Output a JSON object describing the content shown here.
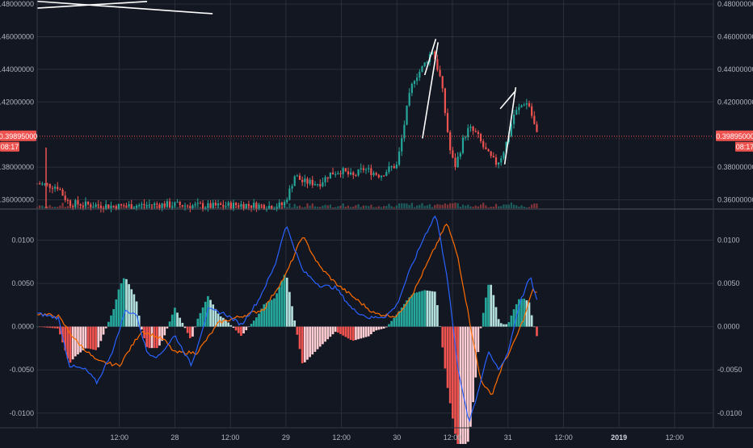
{
  "theme": {
    "background": "#131722",
    "grid": "#2a2e39",
    "axis_text": "#b2b5be",
    "up": "#26a69a",
    "down": "#ef5350",
    "macd_line": "#2962ff",
    "signal_line": "#ff6d00",
    "drawing": "#ffffff"
  },
  "chart_data": [
    {
      "type": "candlestick",
      "title": "",
      "y_ticks": [
        "0.48000000",
        "0.46000000",
        "0.44000000",
        "0.42000000",
        "0.38000000",
        "0.36000000"
      ],
      "y_tick_values": [
        0.48,
        0.46,
        0.44,
        0.42,
        0.38,
        0.36
      ],
      "ylim": [
        0.3548,
        0.4825
      ],
      "price_label": "0.39895000",
      "countdown_label": "08:17",
      "current_price": 0.39895,
      "time_ticks": [
        {
          "label": "12:00",
          "t": 0.5
        },
        {
          "label": "28",
          "t": 1
        },
        {
          "label": "12:00",
          "t": 1.5
        },
        {
          "label": "29",
          "t": 2
        },
        {
          "label": "12:00",
          "t": 2.5
        },
        {
          "label": "30",
          "t": 3
        },
        {
          "label": "12:00",
          "t": 3.5
        },
        {
          "label": "31",
          "t": 4
        },
        {
          "label": "12:00",
          "t": 4.5
        },
        {
          "label": "2019",
          "t": 5,
          "bold": true
        },
        {
          "label": "12:00",
          "t": 5.5
        }
      ],
      "time_range": [
        -0.24,
        5.85
      ],
      "keypoints": [
        [
          -0.24,
          0.37
        ],
        [
          -0.15,
          0.369
        ],
        [
          -0.05,
          0.368
        ],
        [
          0.0,
          0.362
        ],
        [
          0.05,
          0.358
        ],
        [
          0.2,
          0.357
        ],
        [
          0.5,
          0.356
        ],
        [
          0.8,
          0.357
        ],
        [
          1.0,
          0.357
        ],
        [
          1.3,
          0.356
        ],
        [
          1.6,
          0.357
        ],
        [
          1.9,
          0.356
        ],
        [
          1.98,
          0.357
        ],
        [
          2.03,
          0.365
        ],
        [
          2.08,
          0.375
        ],
        [
          2.15,
          0.371
        ],
        [
          2.3,
          0.37
        ],
        [
          2.4,
          0.376
        ],
        [
          2.5,
          0.378
        ],
        [
          2.6,
          0.374
        ],
        [
          2.7,
          0.379
        ],
        [
          2.85,
          0.375
        ],
        [
          2.95,
          0.38
        ],
        [
          3.0,
          0.381
        ],
        [
          3.05,
          0.4
        ],
        [
          3.1,
          0.42
        ],
        [
          3.15,
          0.434
        ],
        [
          3.22,
          0.44
        ],
        [
          3.28,
          0.447
        ],
        [
          3.32,
          0.452
        ],
        [
          3.36,
          0.442
        ],
        [
          3.4,
          0.432
        ],
        [
          3.44,
          0.41
        ],
        [
          3.48,
          0.39
        ],
        [
          3.52,
          0.38
        ],
        [
          3.56,
          0.388
        ],
        [
          3.6,
          0.398
        ],
        [
          3.65,
          0.404
        ],
        [
          3.72,
          0.4
        ],
        [
          3.78,
          0.392
        ],
        [
          3.84,
          0.386
        ],
        [
          3.9,
          0.382
        ],
        [
          3.95,
          0.388
        ],
        [
          4.0,
          0.398
        ],
        [
          4.05,
          0.412
        ],
        [
          4.1,
          0.416
        ],
        [
          4.15,
          0.42
        ],
        [
          4.19,
          0.418
        ],
        [
          4.22,
          0.41
        ],
        [
          4.26,
          0.4
        ]
      ],
      "volume_spike": {
        "t": -0.16,
        "high": 0.392
      },
      "drawings": [
        [
          [
            -0.24,
            0.4775
          ],
          [
            0.75,
            0.4816
          ]
        ],
        [
          [
            -0.24,
            0.4817
          ],
          [
            1.34,
            0.4741
          ]
        ],
        [
          [
            3.25,
            0.4365
          ],
          [
            3.35,
            0.4586
          ]
        ],
        [
          [
            3.23,
            0.3977
          ],
          [
            3.37,
            0.4566
          ]
        ],
        [
          [
            3.93,
            0.4158
          ],
          [
            4.07,
            0.427
          ]
        ],
        [
          [
            3.97,
            0.3817
          ],
          [
            4.07,
            0.429
          ]
        ]
      ]
    },
    {
      "type": "macd",
      "y_ticks": [
        "0.0100",
        "0.0050",
        "0.0000",
        "-0.0050",
        "-0.0100"
      ],
      "y_tick_values": [
        0.01,
        0.005,
        0,
        -0.005,
        -0.01
      ],
      "ylim": [
        -0.0117,
        0.0135
      ],
      "macd_keypoints": [
        [
          -0.24,
          0.0015
        ],
        [
          -0.05,
          0.001
        ],
        [
          0.05,
          -0.0045
        ],
        [
          0.2,
          -0.005
        ],
        [
          0.3,
          -0.0065
        ],
        [
          0.45,
          -0.0025
        ],
        [
          0.55,
          0.0018
        ],
        [
          0.65,
          0.0015
        ],
        [
          0.75,
          -0.003
        ],
        [
          0.85,
          -0.0035
        ],
        [
          1.0,
          -0.001
        ],
        [
          1.15,
          -0.0045
        ],
        [
          1.3,
          0.002
        ],
        [
          1.45,
          0.0015
        ],
        [
          1.6,
          0.0002
        ],
        [
          1.75,
          0.003
        ],
        [
          1.9,
          0.007
        ],
        [
          2.0,
          0.0118
        ],
        [
          2.15,
          0.0065
        ],
        [
          2.3,
          0.0048
        ],
        [
          2.45,
          0.0045
        ],
        [
          2.6,
          0.002
        ],
        [
          2.75,
          0.001
        ],
        [
          2.9,
          0.0012
        ],
        [
          3.0,
          0.0025
        ],
        [
          3.1,
          0.006
        ],
        [
          3.25,
          0.0105
        ],
        [
          3.35,
          0.013
        ],
        [
          3.45,
          0.006
        ],
        [
          3.55,
          -0.005
        ],
        [
          3.65,
          -0.011
        ],
        [
          3.72,
          -0.008
        ],
        [
          3.82,
          -0.003
        ],
        [
          3.92,
          -0.005
        ],
        [
          4.0,
          -0.003
        ],
        [
          4.1,
          0.0025
        ],
        [
          4.2,
          0.0058
        ],
        [
          4.26,
          0.003
        ]
      ],
      "signal_keypoints": [
        [
          -0.24,
          0.0015
        ],
        [
          -0.05,
          0.0012
        ],
        [
          0.1,
          -0.0015
        ],
        [
          0.3,
          -0.004
        ],
        [
          0.5,
          -0.0045
        ],
        [
          0.7,
          -0.0005
        ],
        [
          0.9,
          -0.0015
        ],
        [
          1.0,
          -0.003
        ],
        [
          1.2,
          -0.003
        ],
        [
          1.4,
          0.0005
        ],
        [
          1.6,
          0.0012
        ],
        [
          1.8,
          0.002
        ],
        [
          2.0,
          0.006
        ],
        [
          2.15,
          0.0105
        ],
        [
          2.3,
          0.007
        ],
        [
          2.45,
          0.005
        ],
        [
          2.6,
          0.0035
        ],
        [
          2.8,
          0.0015
        ],
        [
          3.0,
          0.0012
        ],
        [
          3.15,
          0.004
        ],
        [
          3.3,
          0.008
        ],
        [
          3.45,
          0.012
        ],
        [
          3.55,
          0.008
        ],
        [
          3.65,
          0.001
        ],
        [
          3.75,
          -0.006
        ],
        [
          3.85,
          -0.008
        ],
        [
          3.95,
          -0.0045
        ],
        [
          4.05,
          -0.002
        ],
        [
          4.15,
          0.0012
        ],
        [
          4.22,
          0.0042
        ],
        [
          4.26,
          0.004
        ]
      ]
    }
  ]
}
